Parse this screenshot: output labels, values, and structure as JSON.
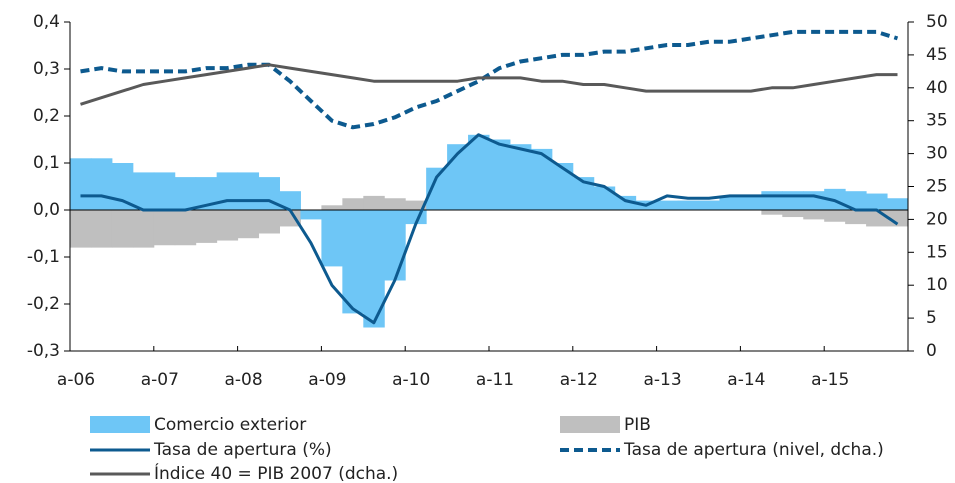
{
  "chart_data": {
    "type": "combo",
    "categories": [
      "a-06",
      null,
      null,
      null,
      "a-07",
      null,
      null,
      null,
      "a-08",
      null,
      null,
      null,
      "a-09",
      null,
      null,
      null,
      "a-10",
      null,
      null,
      null,
      "a-11",
      null,
      null,
      null,
      "a-12",
      null,
      null,
      null,
      "a-13",
      null,
      null,
      null,
      "a-14",
      null,
      null,
      null,
      "a-15",
      null,
      null,
      null
    ],
    "series": [
      {
        "name": "PIB",
        "kind": "bar",
        "color": "#bfbfbf",
        "values": [
          -0.08,
          -0.08,
          -0.08,
          -0.08,
          -0.075,
          -0.075,
          -0.07,
          -0.065,
          -0.06,
          -0.05,
          -0.035,
          -0.01,
          0.01,
          0.025,
          0.03,
          0.025,
          0.02,
          0.02,
          0.03,
          0.04,
          0.05,
          0.06,
          0.07,
          0.06,
          0.05,
          0.04,
          0.02,
          0.01,
          0.01,
          0.02,
          0.02,
          0.01,
          0.0,
          -0.01,
          -0.015,
          -0.02,
          -0.025,
          -0.03,
          -0.035,
          -0.035
        ]
      },
      {
        "name": "Comercio exterior",
        "kind": "bar",
        "color": "#6ec6f6",
        "values": [
          0.11,
          0.11,
          0.1,
          0.08,
          0.08,
          0.07,
          0.07,
          0.08,
          0.08,
          0.07,
          0.04,
          -0.02,
          -0.12,
          -0.22,
          -0.25,
          -0.15,
          -0.03,
          0.09,
          0.14,
          0.16,
          0.15,
          0.14,
          0.13,
          0.1,
          0.07,
          0.05,
          0.03,
          0.02,
          0.02,
          0.02,
          0.02,
          0.03,
          0.03,
          0.04,
          0.04,
          0.04,
          0.045,
          0.04,
          0.035,
          0.025
        ]
      },
      {
        "name": "Tasa de apertura (%)",
        "kind": "line",
        "color": "#0d5a8f",
        "values": [
          0.03,
          0.03,
          0.02,
          0.0,
          0.0,
          0.0,
          0.01,
          0.02,
          0.02,
          0.02,
          0.0,
          -0.07,
          -0.16,
          -0.21,
          -0.24,
          -0.15,
          -0.03,
          0.07,
          0.12,
          0.16,
          0.14,
          0.13,
          0.12,
          0.09,
          0.06,
          0.05,
          0.02,
          0.01,
          0.03,
          0.025,
          0.025,
          0.03,
          0.03,
          0.03,
          0.03,
          0.03,
          0.02,
          0.0,
          0.0,
          -0.03
        ]
      },
      {
        "name": "Tasa de apertura (nivel, dcha.)",
        "kind": "dashed",
        "axis": "y2",
        "color": "#0d5a8f",
        "values": [
          42.5,
          43,
          42.5,
          42.5,
          42.5,
          42.5,
          43,
          43,
          43.5,
          43.5,
          41,
          38,
          35,
          34,
          34.5,
          35.5,
          37,
          38,
          39.5,
          41,
          43,
          44,
          44.5,
          45,
          45,
          45.5,
          45.5,
          46,
          46.5,
          46.5,
          47,
          47,
          47.5,
          48,
          48.5,
          48.5,
          48.5,
          48.5,
          48.5,
          47.5
        ]
      },
      {
        "name": "Índice 40 = PIB 2007 (dcha.)",
        "kind": "line",
        "axis": "y2",
        "color": "#595959",
        "values": [
          37.5,
          38.5,
          39.5,
          40.5,
          41,
          41.5,
          42,
          42.5,
          43,
          43.5,
          43,
          42.5,
          42,
          41.5,
          41,
          41,
          41,
          41,
          41,
          41.5,
          41.5,
          41.5,
          41,
          41,
          40.5,
          40.5,
          40,
          39.5,
          39.5,
          39.5,
          39.5,
          39.5,
          39.5,
          40,
          40,
          40.5,
          41,
          41.5,
          42,
          42
        ]
      }
    ],
    "ylim": [
      -0.3,
      0.4
    ],
    "yticks": [
      {
        "value": 0.4,
        "label": "0,4"
      },
      {
        "value": 0.3,
        "label": "0,3"
      },
      {
        "value": 0.2,
        "label": "0,2"
      },
      {
        "value": 0.1,
        "label": "0,1"
      },
      {
        "value": 0.0,
        "label": "0,0"
      },
      {
        "value": -0.1,
        "label": "-0,1"
      },
      {
        "value": -0.2,
        "label": "-0,2"
      },
      {
        "value": -0.3,
        "label": "-0,3"
      }
    ],
    "y2lim": [
      0,
      50
    ],
    "y2ticks": [
      0,
      5,
      10,
      15,
      20,
      25,
      30,
      35,
      40,
      45,
      50
    ]
  }
}
